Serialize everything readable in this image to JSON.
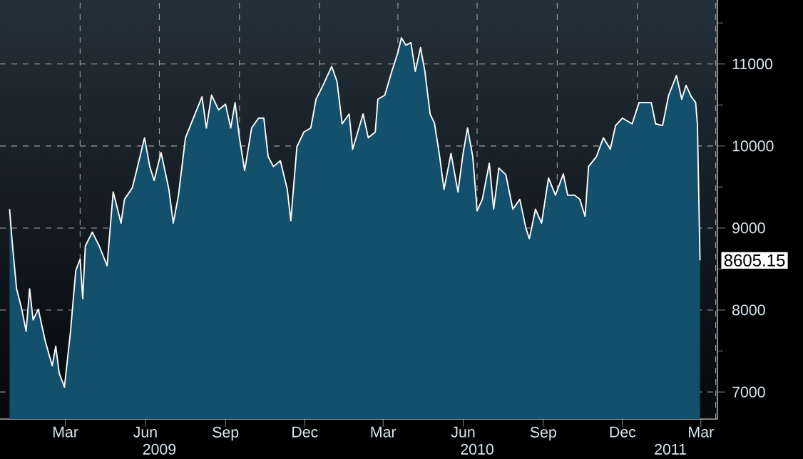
{
  "chart_data": {
    "type": "area",
    "x": [
      "2009-01-10",
      "2009-01-13",
      "2009-01-18",
      "2009-01-24",
      "2009-01-29",
      "2009-02-02",
      "2009-02-06",
      "2009-02-12",
      "2009-02-20",
      "2009-02-28",
      "2009-03-04",
      "2009-03-08",
      "2009-03-14",
      "2009-03-21",
      "2009-03-27",
      "2009-04-01",
      "2009-04-04",
      "2009-04-07",
      "2009-04-15",
      "2009-04-23",
      "2009-05-02",
      "2009-05-09",
      "2009-05-18",
      "2009-05-22",
      "2009-05-31",
      "2009-06-06",
      "2009-06-14",
      "2009-06-20",
      "2009-06-25",
      "2009-07-03",
      "2009-07-12",
      "2009-07-17",
      "2009-07-23",
      "2009-07-31",
      "2009-08-11",
      "2009-08-19",
      "2009-08-24",
      "2009-08-30",
      "2009-09-07",
      "2009-09-15",
      "2009-09-21",
      "2009-09-26",
      "2009-10-01",
      "2009-10-07",
      "2009-10-15",
      "2009-10-23",
      "2009-10-29",
      "2009-11-03",
      "2009-11-09",
      "2009-11-17",
      "2009-11-25",
      "2009-11-29",
      "2009-12-06",
      "2009-12-14",
      "2009-12-22",
      "2009-12-28",
      "2010-01-05",
      "2010-01-15",
      "2010-01-21",
      "2010-01-27",
      "2010-02-04",
      "2010-02-08",
      "2010-02-20",
      "2010-02-26",
      "2010-03-06",
      "2010-03-09",
      "2010-03-17",
      "2010-03-25",
      "2010-04-01",
      "2010-04-05",
      "2010-04-10",
      "2010-04-16",
      "2010-04-21",
      "2010-04-27",
      "2010-05-02",
      "2010-05-08",
      "2010-05-13",
      "2010-05-19",
      "2010-05-24",
      "2010-06-01",
      "2010-06-09",
      "2010-06-15",
      "2010-06-20",
      "2010-06-26",
      "2010-07-01",
      "2010-07-07",
      "2010-07-15",
      "2010-07-20",
      "2010-07-26",
      "2010-08-03",
      "2010-08-11",
      "2010-08-19",
      "2010-08-26",
      "2010-08-30",
      "2010-09-06",
      "2010-09-13",
      "2010-09-21",
      "2010-09-29",
      "2010-10-08",
      "2010-10-13",
      "2010-10-21",
      "2010-10-27",
      "2010-11-02",
      "2010-11-06",
      "2010-11-15",
      "2010-11-23",
      "2010-12-01",
      "2010-12-07",
      "2010-12-15",
      "2010-12-26",
      "2011-01-03",
      "2011-01-17",
      "2011-01-22",
      "2011-01-30",
      "2011-02-06",
      "2011-02-15",
      "2011-02-21",
      "2011-02-26",
      "2011-03-04",
      "2011-03-09",
      "2011-03-11",
      "2011-03-14"
    ],
    "series": [
      {
        "color": "#12506c",
        "values": [
          9230,
          8830,
          8260,
          8010,
          7740,
          8260,
          7880,
          8010,
          7620,
          7320,
          7560,
          7230,
          7060,
          7740,
          8480,
          8620,
          8140,
          8780,
          8950,
          8780,
          8540,
          9440,
          9060,
          9350,
          9490,
          9750,
          10100,
          9750,
          9580,
          9920,
          9470,
          9060,
          9400,
          10100,
          10390,
          10600,
          10220,
          10620,
          10440,
          10510,
          10220,
          10530,
          10100,
          9700,
          10220,
          10340,
          10340,
          9870,
          9750,
          9820,
          9470,
          9090,
          9990,
          10170,
          10220,
          10570,
          10740,
          10970,
          10790,
          10270,
          10390,
          9960,
          10390,
          10100,
          10170,
          10570,
          10620,
          10910,
          11140,
          11320,
          11230,
          11260,
          10910,
          11200,
          10910,
          10390,
          10280,
          9870,
          9470,
          9910,
          9440,
          9920,
          10220,
          9870,
          9210,
          9350,
          9790,
          9230,
          9730,
          9650,
          9230,
          9350,
          9000,
          8870,
          9230,
          9060,
          9610,
          9400,
          9660,
          9400,
          9400,
          9350,
          9140,
          9750,
          9870,
          10100,
          9960,
          10250,
          10340,
          10270,
          10530,
          10530,
          10270,
          10250,
          10620,
          10860,
          10570,
          10740,
          10600,
          10530,
          10270,
          8605.15
        ]
      }
    ],
    "xlim": [
      "2008-12-30",
      "2011-04-03"
    ],
    "ylim": [
      6670,
      11780
    ],
    "xticks": [
      {
        "value": "2009-03-15",
        "label": "Mar"
      },
      {
        "value": "2009-06-15",
        "label": "Jun"
      },
      {
        "value": "2009-09-15",
        "label": "Sep"
      },
      {
        "value": "2009-12-15",
        "label": "Dec"
      },
      {
        "value": "2010-03-15",
        "label": "Mar"
      },
      {
        "value": "2010-06-15",
        "label": "Jun"
      },
      {
        "value": "2010-09-15",
        "label": "Sep"
      },
      {
        "value": "2010-12-15",
        "label": "Dec"
      },
      {
        "value": "2011-03-15",
        "label": "Mar"
      },
      {
        "value": "2009-04-01",
        "label": null
      },
      {
        "value": "2009-07-01",
        "label": null
      },
      {
        "value": "2009-10-01",
        "label": null
      },
      {
        "value": "2010-01-01",
        "label": null
      },
      {
        "value": "2010-04-01",
        "label": null
      },
      {
        "value": "2010-07-01",
        "label": null
      },
      {
        "value": "2010-10-01",
        "label": null
      },
      {
        "value": "2011-01-01",
        "label": null
      },
      {
        "value": "2011-04-01",
        "label": null
      }
    ],
    "x2lim": [
      "2008-12-30",
      "2011-04-03"
    ],
    "x2ticks": [
      {
        "value": "2009-07-01",
        "label": "2009"
      },
      {
        "value": "2010-07-01",
        "label": "2010"
      },
      {
        "value": "2011-02-08",
        "label": "2011"
      },
      {
        "value": "2010-01-01",
        "label": null
      },
      {
        "value": "2011-01-01",
        "label": null
      }
    ],
    "yticks": [
      7000,
      8000,
      9000,
      10000,
      11000,
      {
        "value": 7500,
        "label": null
      },
      {
        "value": 8500,
        "label": null
      },
      {
        "value": 9500,
        "label": null
      },
      {
        "value": 10500,
        "label": null
      },
      {
        "value": 11500,
        "label": null
      }
    ],
    "grid": true,
    "annotations": [
      {
        "text": "8605.15",
        "x": "2011-03-14",
        "y": 8605.15
      }
    ]
  }
}
